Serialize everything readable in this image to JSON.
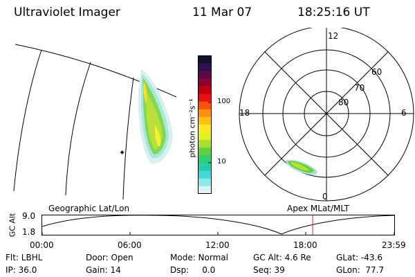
{
  "header": {
    "instrument": "Ultraviolet Imager",
    "date": "11 Mar 07",
    "time": "18:25:16 UT"
  },
  "colorbar": {
    "label": "photon cm⁻²s⁻¹",
    "ticks": [
      "100",
      "10"
    ],
    "colors": [
      "#111030",
      "#301050",
      "#5a0a4a",
      "#8a0030",
      "#c00010",
      "#e81010",
      "#ff5010",
      "#ff9010",
      "#ffc010",
      "#ffe820",
      "#e0f020",
      "#a8e030",
      "#60d040",
      "#30d070",
      "#20d0a8",
      "#40d8d8",
      "#90e8e8",
      "#d8f4f4"
    ]
  },
  "polar": {
    "mlt_labels": [
      "12",
      "18",
      "6",
      "0"
    ],
    "lat_labels": [
      "60",
      "70",
      "80"
    ]
  },
  "timeline": {
    "y_axis_label": "GC Alt",
    "y_ticks": [
      "9.0",
      "1.8"
    ],
    "left_title": "Geographic Lat/Lon",
    "right_title": "Apex MLat/MLT",
    "x_ticks": [
      "00:00",
      "06:00",
      "12:00",
      "18:00",
      "23:59"
    ],
    "marker_color": "#e02020"
  },
  "info": {
    "filter": "Flt: LBHL",
    "door": "Door: Open",
    "mode": "Mode: Normal",
    "gc_alt": "GC Alt: 4.6 Re",
    "glat": "GLat: -43.6",
    "ip": "IP: 36.0",
    "gain": "Gain: 14",
    "dsp": "Dsp:     0.0",
    "seq": "Seq: 39",
    "glon": "GLon:  77.7"
  }
}
